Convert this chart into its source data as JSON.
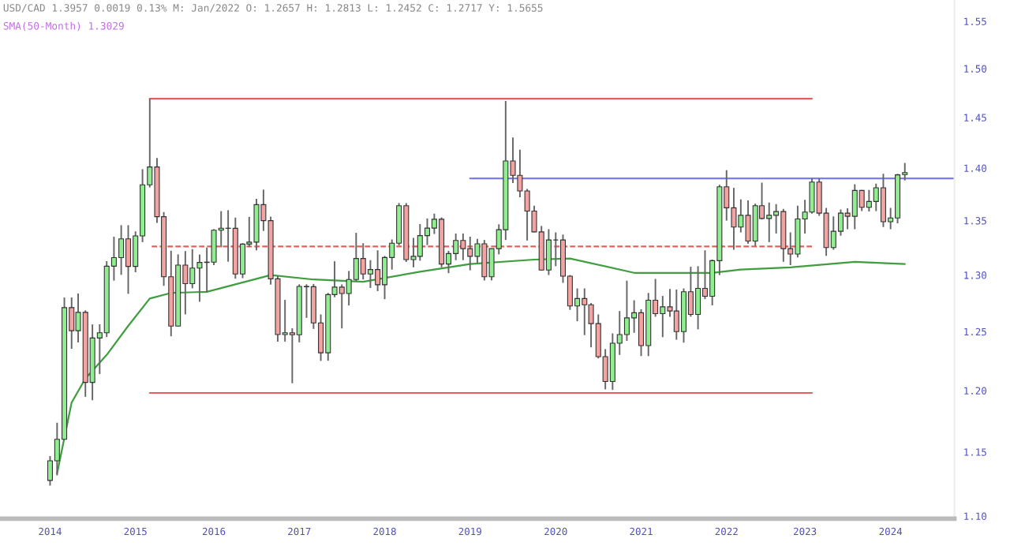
{
  "chart_data": {
    "type": "candlestick",
    "annotations": [
      "USD/CAD 1.3957 0.0019 0.13% M: Jan/2022 O: 1.2657 H: 1.2813 L: 1.2452 C: 1.2717 Y: 1.5655",
      "SMA(50-Month) 1.3029"
    ],
    "x": [
      "2014-11",
      "2014-12",
      "2015-01",
      "2015-02",
      "2015-03",
      "2015-04",
      "2015-05",
      "2015-06",
      "2015-07",
      "2015-08",
      "2015-09",
      "2015-10",
      "2015-11",
      "2015-12",
      "2016-01",
      "2016-02",
      "2016-03",
      "2016-04",
      "2016-05",
      "2016-06",
      "2016-07",
      "2016-08",
      "2016-09",
      "2016-10",
      "2016-11",
      "2016-12",
      "2017-01",
      "2017-02",
      "2017-03",
      "2017-04",
      "2017-05",
      "2017-06",
      "2017-07",
      "2017-08",
      "2017-09",
      "2017-10",
      "2017-11",
      "2017-12",
      "2018-01",
      "2018-02",
      "2018-03",
      "2018-04",
      "2018-05",
      "2018-06",
      "2018-07",
      "2018-08",
      "2018-09",
      "2018-10",
      "2018-11",
      "2018-12",
      "2019-01",
      "2019-02",
      "2019-03",
      "2019-04",
      "2019-05",
      "2019-06",
      "2019-07",
      "2019-08",
      "2019-09",
      "2019-10",
      "2019-11",
      "2019-12",
      "2020-01",
      "2020-02",
      "2020-03",
      "2020-04",
      "2020-05",
      "2020-06",
      "2020-07",
      "2020-08",
      "2020-09",
      "2020-10",
      "2020-11",
      "2020-12",
      "2021-01",
      "2021-02",
      "2021-03",
      "2021-04",
      "2021-05",
      "2021-06",
      "2021-07",
      "2021-08",
      "2021-09",
      "2021-10",
      "2021-11",
      "2021-12",
      "2022-01",
      "2022-02",
      "2022-03",
      "2022-04",
      "2022-05",
      "2022-06",
      "2022-07",
      "2022-08",
      "2022-09",
      "2022-10",
      "2022-11",
      "2022-12",
      "2023-01",
      "2023-02",
      "2023-03",
      "2023-04",
      "2023-05",
      "2023-06",
      "2023-07",
      "2023-08",
      "2023-09",
      "2023-10",
      "2023-11",
      "2023-12",
      "2024-01",
      "2024-02",
      "2024-03",
      "2024-04",
      "2024-05",
      "2024-06",
      "2024-07",
      "2024-08",
      "2024-09",
      "2024-10",
      "2024-11"
    ],
    "ohlc": [
      [
        1.1275,
        1.1467,
        1.1235,
        1.143
      ],
      [
        1.143,
        1.1735,
        1.1315,
        1.1601
      ],
      [
        1.1601,
        1.2799,
        1.1599,
        1.271
      ],
      [
        1.271,
        1.28,
        1.2352,
        1.2508
      ],
      [
        1.2508,
        1.2835,
        1.2407,
        1.2668
      ],
      [
        1.2668,
        1.2686,
        1.1948,
        1.2068
      ],
      [
        1.2068,
        1.2563,
        1.192,
        1.2445
      ],
      [
        1.2445,
        1.2564,
        1.2138,
        1.249
      ],
      [
        1.249,
        1.3126,
        1.2453,
        1.308
      ],
      [
        1.308,
        1.335,
        1.295,
        1.3158
      ],
      [
        1.3158,
        1.3457,
        1.3002,
        1.333
      ],
      [
        1.333,
        1.3457,
        1.2832,
        1.3078
      ],
      [
        1.3078,
        1.34,
        1.3025,
        1.3357
      ],
      [
        1.3357,
        1.399,
        1.33,
        1.3839
      ],
      [
        1.3839,
        1.469,
        1.3814,
        1.4011
      ],
      [
        1.4011,
        1.4098,
        1.3478,
        1.3537
      ],
      [
        1.3537,
        1.358,
        1.2903,
        1.2985
      ],
      [
        1.2985,
        1.3221,
        1.246,
        1.2548
      ],
      [
        1.2548,
        1.3188,
        1.2544,
        1.309
      ],
      [
        1.309,
        1.3218,
        1.2651,
        1.2923
      ],
      [
        1.2923,
        1.3236,
        1.2881,
        1.3063
      ],
      [
        1.3063,
        1.3186,
        1.2762,
        1.3114
      ],
      [
        1.3114,
        1.325,
        1.2844,
        1.3117
      ],
      [
        1.3117,
        1.342,
        1.309,
        1.341
      ],
      [
        1.341,
        1.3589,
        1.3253,
        1.3429
      ],
      [
        1.3429,
        1.3598,
        1.3121,
        1.3428
      ],
      [
        1.3428,
        1.3528,
        1.2967,
        1.301
      ],
      [
        1.301,
        1.329,
        1.2972,
        1.3282
      ],
      [
        1.3282,
        1.3535,
        1.3255,
        1.33
      ],
      [
        1.33,
        1.3706,
        1.3224,
        1.365
      ],
      [
        1.365,
        1.3793,
        1.3404,
        1.35
      ],
      [
        1.35,
        1.3537,
        1.2914,
        1.2966
      ],
      [
        1.2966,
        1.2993,
        1.2413,
        1.2475
      ],
      [
        1.2475,
        1.2778,
        1.2414,
        1.249
      ],
      [
        1.249,
        1.2529,
        1.2061,
        1.2473
      ],
      [
        1.2473,
        1.2917,
        1.2408,
        1.2898
      ],
      [
        1.2898,
        1.2917,
        1.262,
        1.2895
      ],
      [
        1.2895,
        1.292,
        1.2524,
        1.2576
      ],
      [
        1.2576,
        1.265,
        1.2249,
        1.2318
      ],
      [
        1.2318,
        1.284,
        1.2251,
        1.2825
      ],
      [
        1.2825,
        1.3125,
        1.2802,
        1.2892
      ],
      [
        1.2892,
        1.2916,
        1.2528,
        1.2835
      ],
      [
        1.2835,
        1.3037,
        1.2729,
        1.296
      ],
      [
        1.296,
        1.3386,
        1.2944,
        1.315
      ],
      [
        1.315,
        1.329,
        1.296,
        1.301
      ],
      [
        1.301,
        1.3135,
        1.2884,
        1.305
      ],
      [
        1.305,
        1.3225,
        1.2856,
        1.2913
      ],
      [
        1.2913,
        1.3173,
        1.2785,
        1.3159
      ],
      [
        1.3159,
        1.3325,
        1.3049,
        1.329
      ],
      [
        1.329,
        1.3665,
        1.327,
        1.364
      ],
      [
        1.364,
        1.3665,
        1.3119,
        1.314
      ],
      [
        1.314,
        1.334,
        1.307,
        1.317
      ],
      [
        1.317,
        1.3468,
        1.313,
        1.336
      ],
      [
        1.336,
        1.352,
        1.3273,
        1.343
      ],
      [
        1.343,
        1.3565,
        1.3375,
        1.3513
      ],
      [
        1.3513,
        1.353,
        1.307,
        1.31
      ],
      [
        1.31,
        1.322,
        1.3017,
        1.3195
      ],
      [
        1.3195,
        1.338,
        1.3135,
        1.3315
      ],
      [
        1.3315,
        1.338,
        1.3135,
        1.324
      ],
      [
        1.324,
        1.335,
        1.3043,
        1.317
      ],
      [
        1.317,
        1.333,
        1.311,
        1.3285
      ],
      [
        1.3285,
        1.332,
        1.2951,
        1.2985
      ],
      [
        1.2985,
        1.324,
        1.2952,
        1.324
      ],
      [
        1.324,
        1.3465,
        1.3188,
        1.3415
      ],
      [
        1.3415,
        1.4667,
        1.332,
        1.407
      ],
      [
        1.407,
        1.43,
        1.3855,
        1.393
      ],
      [
        1.393,
        1.418,
        1.372,
        1.378
      ],
      [
        1.378,
        1.38,
        1.3315,
        1.359
      ],
      [
        1.359,
        1.364,
        1.339,
        1.3395
      ],
      [
        1.3395,
        1.345,
        1.304,
        1.3045
      ],
      [
        1.3045,
        1.342,
        1.3,
        1.332
      ],
      [
        1.332,
        1.339,
        1.308,
        1.332
      ],
      [
        1.332,
        1.337,
        1.293,
        1.299
      ],
      [
        1.299,
        1.3,
        1.269,
        1.2725
      ],
      [
        1.2725,
        1.288,
        1.259,
        1.279
      ],
      [
        1.279,
        1.288,
        1.247,
        1.2735
      ],
      [
        1.2735,
        1.275,
        1.2365,
        1.257
      ],
      [
        1.257,
        1.265,
        1.227,
        1.2285
      ],
      [
        1.2285,
        1.235,
        1.201,
        1.2075
      ],
      [
        1.2075,
        1.2485,
        1.2005,
        1.24
      ],
      [
        1.24,
        1.268,
        1.23,
        1.2475
      ],
      [
        1.2475,
        1.295,
        1.242,
        1.262
      ],
      [
        1.262,
        1.2775,
        1.249,
        1.2665
      ],
      [
        1.2665,
        1.2695,
        1.229,
        1.238
      ],
      [
        1.238,
        1.284,
        1.229,
        1.2775
      ],
      [
        1.2775,
        1.2965,
        1.263,
        1.2657
      ],
      [
        1.2657,
        1.2813,
        1.2452,
        1.2717
      ],
      [
        1.2717,
        1.2875,
        1.263,
        1.268
      ],
      [
        1.268,
        1.287,
        1.243,
        1.25
      ],
      [
        1.25,
        1.288,
        1.2405,
        1.285
      ],
      [
        1.285,
        1.3075,
        1.263,
        1.265
      ],
      [
        1.265,
        1.308,
        1.252,
        1.288
      ],
      [
        1.288,
        1.3225,
        1.2785,
        1.281
      ],
      [
        1.281,
        1.314,
        1.273,
        1.313
      ],
      [
        1.313,
        1.384,
        1.3,
        1.382
      ],
      [
        1.382,
        1.398,
        1.35,
        1.362
      ],
      [
        1.362,
        1.381,
        1.323,
        1.344
      ],
      [
        1.344,
        1.37,
        1.339,
        1.355
      ],
      [
        1.355,
        1.369,
        1.3285,
        1.331
      ],
      [
        1.331,
        1.366,
        1.3265,
        1.364
      ],
      [
        1.364,
        1.386,
        1.351,
        1.352
      ],
      [
        1.352,
        1.367,
        1.33,
        1.355
      ],
      [
        1.355,
        1.3655,
        1.338,
        1.3585
      ],
      [
        1.3585,
        1.361,
        1.312,
        1.324
      ],
      [
        1.324,
        1.339,
        1.309,
        1.319
      ],
      [
        1.319,
        1.364,
        1.316,
        1.3515
      ],
      [
        1.3515,
        1.3695,
        1.338,
        1.358
      ],
      [
        1.358,
        1.39,
        1.3565,
        1.3865
      ],
      [
        1.3865,
        1.39,
        1.3545,
        1.357
      ],
      [
        1.357,
        1.362,
        1.3175,
        1.325
      ],
      [
        1.325,
        1.354,
        1.323,
        1.34
      ],
      [
        1.34,
        1.3605,
        1.336,
        1.357
      ],
      [
        1.357,
        1.3615,
        1.342,
        1.354
      ],
      [
        1.354,
        1.3845,
        1.342,
        1.3785
      ],
      [
        1.3785,
        1.379,
        1.359,
        1.3625
      ],
      [
        1.3625,
        1.379,
        1.3585,
        1.368
      ],
      [
        1.368,
        1.385,
        1.359,
        1.381
      ],
      [
        1.381,
        1.3945,
        1.344,
        1.349
      ],
      [
        1.349,
        1.362,
        1.342,
        1.3525
      ],
      [
        1.3525,
        1.3945,
        1.3475,
        1.3935
      ],
      [
        1.3938,
        1.405,
        1.388,
        1.3957
      ]
    ],
    "series": [
      {
        "type": "line",
        "color": "#3f9e3f",
        "x": [
          "2014-12",
          "2015-02",
          "2015-04",
          "2015-07",
          "2015-10",
          "2016-01",
          "2016-04",
          "2016-09",
          "2017-06",
          "2017-12",
          "2018-07",
          "2019-03",
          "2019-10",
          "2020-07",
          "2020-12",
          "2021-09",
          "2022-08",
          "2022-12",
          "2023-07",
          "2024-04",
          "2024-11"
        ],
        "values": [
          1.133,
          1.19,
          1.21,
          1.23,
          1.255,
          1.279,
          1.284,
          1.285,
          1.3,
          1.296,
          1.294,
          1.303,
          1.31,
          1.314,
          1.315,
          1.302,
          1.302,
          1.305,
          1.307,
          1.312,
          1.31
        ]
      },
      {
        "type": "line",
        "color": "#e06060",
        "line_style": "solid",
        "x": [
          "2016-01",
          "2023-10"
        ],
        "values": [
          1.469,
          1.469
        ]
      },
      {
        "type": "line",
        "color": "#e06060",
        "line_style": "solid",
        "x": [
          "2016-01",
          "2023-10"
        ],
        "values": [
          1.198,
          1.198
        ]
      },
      {
        "type": "line",
        "color": "#e06060",
        "line_style": "dashed",
        "x": [
          "2016-01",
          "2023-10"
        ],
        "values": [
          1.326,
          1.326
        ]
      },
      {
        "type": "line",
        "color": "#7b7bff",
        "line_style": "solid",
        "x": [
          "2019-10",
          "2025-06"
        ],
        "values": [
          1.39,
          1.39
        ]
      }
    ],
    "log": true,
    "xlim": [
      "2014-04",
      "2025-06"
    ],
    "ylim": [
      1.098,
      1.576
    ],
    "xticks": [
      {
        "value": "2014-11",
        "label": "2014"
      },
      {
        "value": "2015-11",
        "label": "2015"
      },
      {
        "value": "2016-10",
        "label": "2016"
      },
      {
        "value": "2017-10",
        "label": "2017"
      },
      {
        "value": "2018-10",
        "label": "2018"
      },
      {
        "value": "2019-10",
        "label": "2019"
      },
      {
        "value": "2020-10",
        "label": "2020"
      },
      {
        "value": "2021-10",
        "label": "2021"
      },
      {
        "value": "2022-10",
        "label": "2022"
      },
      {
        "value": "2023-09",
        "label": "2023"
      },
      {
        "value": "2024-09",
        "label": "2024"
      }
    ],
    "yticks": [
      {
        "value": 1.1,
        "label": "1.10"
      },
      {
        "value": 1.15,
        "label": "1.15"
      },
      {
        "value": 1.2,
        "label": "1.20"
      },
      {
        "value": 1.25,
        "label": "1.25"
      },
      {
        "value": 1.3,
        "label": "1.30"
      },
      {
        "value": 1.35,
        "label": "1.35"
      },
      {
        "value": 1.4,
        "label": "1.40"
      },
      {
        "value": 1.45,
        "label": "1.45"
      },
      {
        "value": 1.5,
        "label": "1.50"
      },
      {
        "value": 1.55,
        "label": "1.55"
      }
    ],
    "grid": false,
    "legend": false
  }
}
